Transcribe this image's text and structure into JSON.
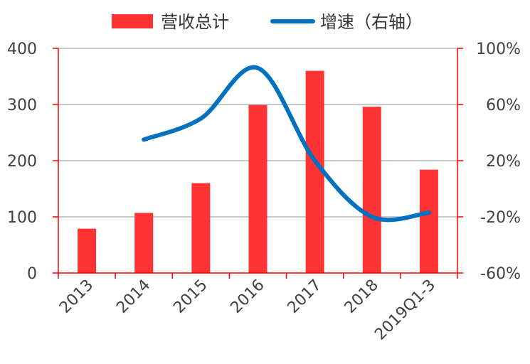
{
  "chart_data": {
    "type": "bar",
    "categories": [
      "2013",
      "2014",
      "2015",
      "2016",
      "2017",
      "2018",
      "2019Q1-3"
    ],
    "series": [
      {
        "name": "营收总计",
        "type": "bar",
        "axis": "left",
        "color": "#FF3333",
        "values": [
          79,
          107,
          160,
          299,
          360,
          296,
          184
        ]
      },
      {
        "name": "增速（右轴）",
        "type": "line",
        "axis": "right",
        "color": "#0070C0",
        "values": [
          null,
          35,
          50,
          86,
          20,
          -20,
          -17
        ]
      }
    ],
    "y_left": {
      "ylim": [
        0,
        400
      ],
      "ticks": [
        0,
        100,
        200,
        300,
        400
      ],
      "tick_labels": [
        "0",
        "100",
        "200",
        "300",
        "400"
      ]
    },
    "y_right": {
      "ylim": [
        -60,
        100
      ],
      "ticks": [
        -60,
        -20,
        20,
        60,
        100
      ],
      "tick_labels": [
        "-60%",
        "-20%",
        "20%",
        "60%",
        "100%"
      ]
    },
    "grid": true,
    "legend": "top",
    "axis_color": "#FF0000",
    "grid_color": "#A6A6A6"
  }
}
